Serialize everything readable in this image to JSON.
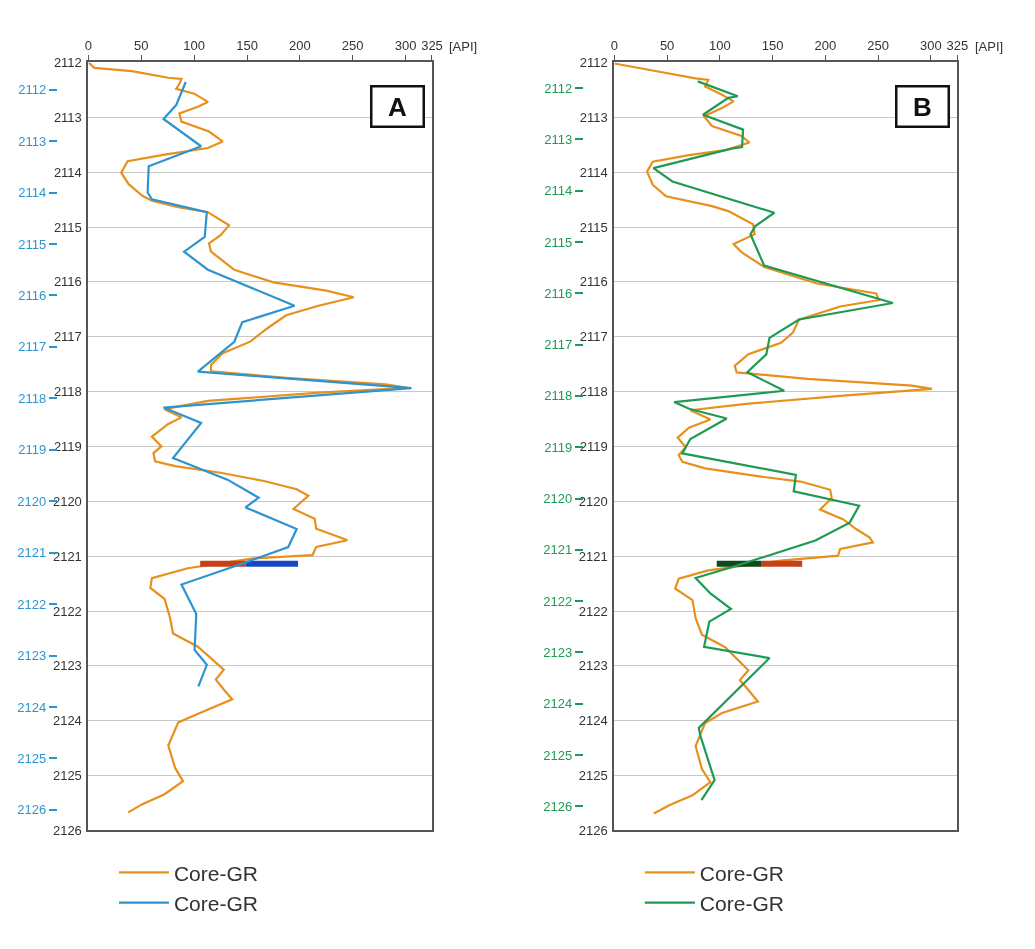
{
  "chart_data": [
    {
      "type": "line",
      "xlabel": "[API]",
      "annotations": [
        "A"
      ],
      "xlim": [
        0,
        325
      ],
      "xticks": [
        0,
        50,
        100,
        150,
        200,
        250,
        300,
        325
      ],
      "ylim": [
        2126,
        2112
      ],
      "yticks": [
        2112,
        2113,
        2114,
        2115,
        2116,
        2117,
        2118,
        2119,
        2120,
        2121,
        2122,
        2123,
        2124,
        2125,
        2126
      ],
      "y2lim": [
        2126.4,
        2111.47
      ],
      "y2ticks": [
        2112,
        2113,
        2114,
        2115,
        2116,
        2117,
        2118,
        2119,
        2120,
        2121,
        2122,
        2123,
        2124,
        2125,
        2126
      ],
      "grid": "y",
      "legend": "bottom",
      "series": [
        {
          "name": "Core-GR",
          "color": "#e8901c",
          "x": [
            0,
            5.6,
            41,
            75.5,
            88,
            86,
            83,
            100,
            113,
            103.5,
            86,
            88,
            114,
            127,
            113,
            72,
            37,
            31,
            38,
            51,
            60,
            85,
            113,
            133,
            125,
            114,
            116,
            138,
            175,
            225,
            251,
            218.5,
            187,
            169,
            153,
            127,
            116,
            116,
            187,
            281,
            302,
            218.5,
            113,
            72,
            88,
            75.5,
            60,
            69,
            61.5,
            63,
            82,
            125,
            166,
            197,
            208,
            194,
            214,
            215.5,
            237,
            245,
            215.5,
            212,
            156,
            94,
            60,
            58.5,
            72,
            77,
            80,
            103.5,
            128,
            120.5,
            128,
            136,
            106.5,
            85,
            75.5,
            82,
            89.5,
            72,
            51,
            37.6
          ],
          "values": [
            2112.0,
            2112.1,
            2112.16,
            2112.28,
            2112.3,
            2112.39,
            2112.48,
            2112.57,
            2112.72,
            2112.81,
            2112.93,
            2113.08,
            2113.26,
            2113.44,
            2113.56,
            2113.68,
            2113.8,
            2114.01,
            2114.22,
            2114.43,
            2114.52,
            2114.64,
            2114.73,
            2114.97,
            2115.15,
            2115.3,
            2115.45,
            2115.78,
            2116.01,
            2116.16,
            2116.28,
            2116.43,
            2116.61,
            2116.85,
            2117.09,
            2117.3,
            2117.51,
            2117.63,
            2117.75,
            2117.87,
            2117.93,
            2118.02,
            2118.17,
            2118.32,
            2118.47,
            2118.59,
            2118.82,
            2119.0,
            2119.12,
            2119.27,
            2119.36,
            2119.48,
            2119.63,
            2119.78,
            2119.9,
            2120.14,
            2120.32,
            2120.5,
            2120.65,
            2120.71,
            2120.83,
            2120.98,
            2121.04,
            2121.22,
            2121.4,
            2121.58,
            2121.78,
            2122.11,
            2122.41,
            2122.65,
            2123.07,
            2123.25,
            2123.43,
            2123.61,
            2123.85,
            2124.03,
            2124.45,
            2124.86,
            2125.1,
            2125.34,
            2125.52,
            2125.67
          ]
        },
        {
          "name": "Core-GR",
          "color": "#2e94d0",
          "axis": "y2",
          "x": [
            92,
            83,
            71,
            106.6,
            57,
            56,
            60,
            112,
            110,
            90.5,
            113,
            195,
            145.5,
            138,
            103.5,
            305.6,
            71,
            106.6,
            80,
            131.5,
            161,
            148.6,
            197,
            189,
            150,
            88,
            102,
            100.4,
            112,
            104
          ],
          "values": [
            2111.85,
            2112.3,
            2112.57,
            2113.1,
            2113.49,
            2114.0,
            2114.13,
            2114.38,
            2114.86,
            2115.15,
            2115.5,
            2116.2,
            2116.52,
            2116.9,
            2117.48,
            2117.8,
            2118.18,
            2118.48,
            2119.16,
            2119.58,
            2119.93,
            2120.12,
            2120.54,
            2120.89,
            2121.18,
            2121.62,
            2122.19,
            2122.89,
            2123.18,
            2123.6
          ]
        },
        {
          "color": "#c8401a",
          "x": [
            105.7,
            148.6
          ],
          "values": [
            2121.14,
            2121.14
          ]
        },
        {
          "color": "#1747c4",
          "x": [
            148.6,
            198.3
          ],
          "values": [
            2121.14,
            2121.14
          ]
        }
      ]
    },
    {
      "type": "line",
      "xlabel": "[API]",
      "annotations": [
        "B"
      ],
      "xlim": [
        0,
        325
      ],
      "xticks": [
        0,
        50,
        100,
        150,
        200,
        250,
        300,
        325
      ],
      "ylim": [
        2126,
        2112
      ],
      "yticks": [
        2112,
        2113,
        2114,
        2115,
        2116,
        2117,
        2118,
        2119,
        2120,
        2121,
        2122,
        2123,
        2124,
        2125,
        2126
      ],
      "y2lim": [
        2126.47,
        2111.5
      ],
      "y2ticks": [
        2112,
        2113,
        2114,
        2115,
        2116,
        2117,
        2118,
        2119,
        2120,
        2121,
        2122,
        2123,
        2124,
        2125,
        2126
      ],
      "grid": "y",
      "legend": "bottom",
      "series": [
        {
          "name": "Core-GR",
          "color": "#e8901c",
          "x": [
            0,
            42.7,
            77,
            89,
            86,
            102,
            113,
            102,
            85,
            92.5,
            120.5,
            128,
            105,
            70.7,
            36.4,
            31,
            36.4,
            49,
            92.5,
            108,
            131.4,
            133,
            113,
            120.5,
            142,
            192,
            248,
            251,
            214,
            175,
            169,
            158,
            127,
            114,
            116,
            183,
            282,
            301,
            220,
            127,
            72,
            91,
            70.7,
            60,
            67.6,
            61,
            64.4,
            86,
            139,
            176.5,
            204.5,
            206,
            195,
            217,
            229.5,
            242,
            245,
            214,
            212,
            158,
            89,
            61,
            57.6,
            74,
            77,
            83,
            105,
            127,
            119,
            127,
            136,
            102,
            86,
            77,
            83,
            91,
            74,
            52,
            37.4
          ],
          "values": [
            2112.02,
            2112.17,
            2112.29,
            2112.32,
            2112.44,
            2112.59,
            2112.71,
            2112.83,
            2112.98,
            2113.16,
            2113.34,
            2113.46,
            2113.6,
            2113.69,
            2113.81,
            2113.99,
            2114.23,
            2114.44,
            2114.62,
            2114.71,
            2114.95,
            2115.13,
            2115.31,
            2115.46,
            2115.73,
            2116.03,
            2116.21,
            2116.33,
            2116.45,
            2116.69,
            2116.93,
            2117.11,
            2117.32,
            2117.53,
            2117.65,
            2117.77,
            2117.89,
            2117.95,
            2118.07,
            2118.22,
            2118.34,
            2118.51,
            2118.66,
            2118.84,
            2119.01,
            2119.16,
            2119.28,
            2119.4,
            2119.55,
            2119.64,
            2119.79,
            2119.94,
            2120.15,
            2120.33,
            2120.51,
            2120.66,
            2120.75,
            2120.87,
            2120.99,
            2121.08,
            2121.26,
            2121.41,
            2121.59,
            2121.8,
            2122.13,
            2122.43,
            2122.66,
            2123.08,
            2123.26,
            2123.44,
            2123.65,
            2123.86,
            2124.04,
            2124.46,
            2124.88,
            2125.12,
            2125.36,
            2125.54,
            2125.69
          ]
        },
        {
          "name": "Core-GR",
          "color": "#1f9a55",
          "axis": "y2",
          "x": [
            79,
            117,
            108,
            84,
            122,
            121,
            111,
            37,
            55,
            151.6,
            133.6,
            129,
            142,
            264,
            175,
            147,
            144,
            126,
            161,
            56.7,
            70.7,
            106.5,
            72,
            64.4,
            172,
            170,
            232,
            223,
            190.5,
            111,
            77,
            91,
            110.5,
            90,
            85,
            147,
            80,
            81.6,
            95,
            82.5
          ],
          "values": [
            2111.87,
            2112.16,
            2112.19,
            2112.52,
            2112.81,
            2113.15,
            2113.18,
            2113.56,
            2113.82,
            2114.43,
            2114.69,
            2114.85,
            2115.46,
            2116.19,
            2116.51,
            2116.87,
            2117.19,
            2117.54,
            2117.9,
            2118.12,
            2118.25,
            2118.44,
            2118.84,
            2119.12,
            2119.54,
            2119.86,
            2120.14,
            2120.47,
            2120.82,
            2121.34,
            2121.55,
            2121.85,
            2122.15,
            2122.4,
            2122.89,
            2123.11,
            2124.47,
            2124.63,
            2125.49,
            2125.88
          ]
        },
        {
          "color": "#0d4a1a",
          "x": [
            97,
            139
          ],
          "values": [
            2121.14,
            2121.14
          ]
        },
        {
          "color": "#c8401a",
          "x": [
            139,
            178
          ],
          "values": [
            2121.14,
            2121.14
          ]
        }
      ]
    }
  ]
}
